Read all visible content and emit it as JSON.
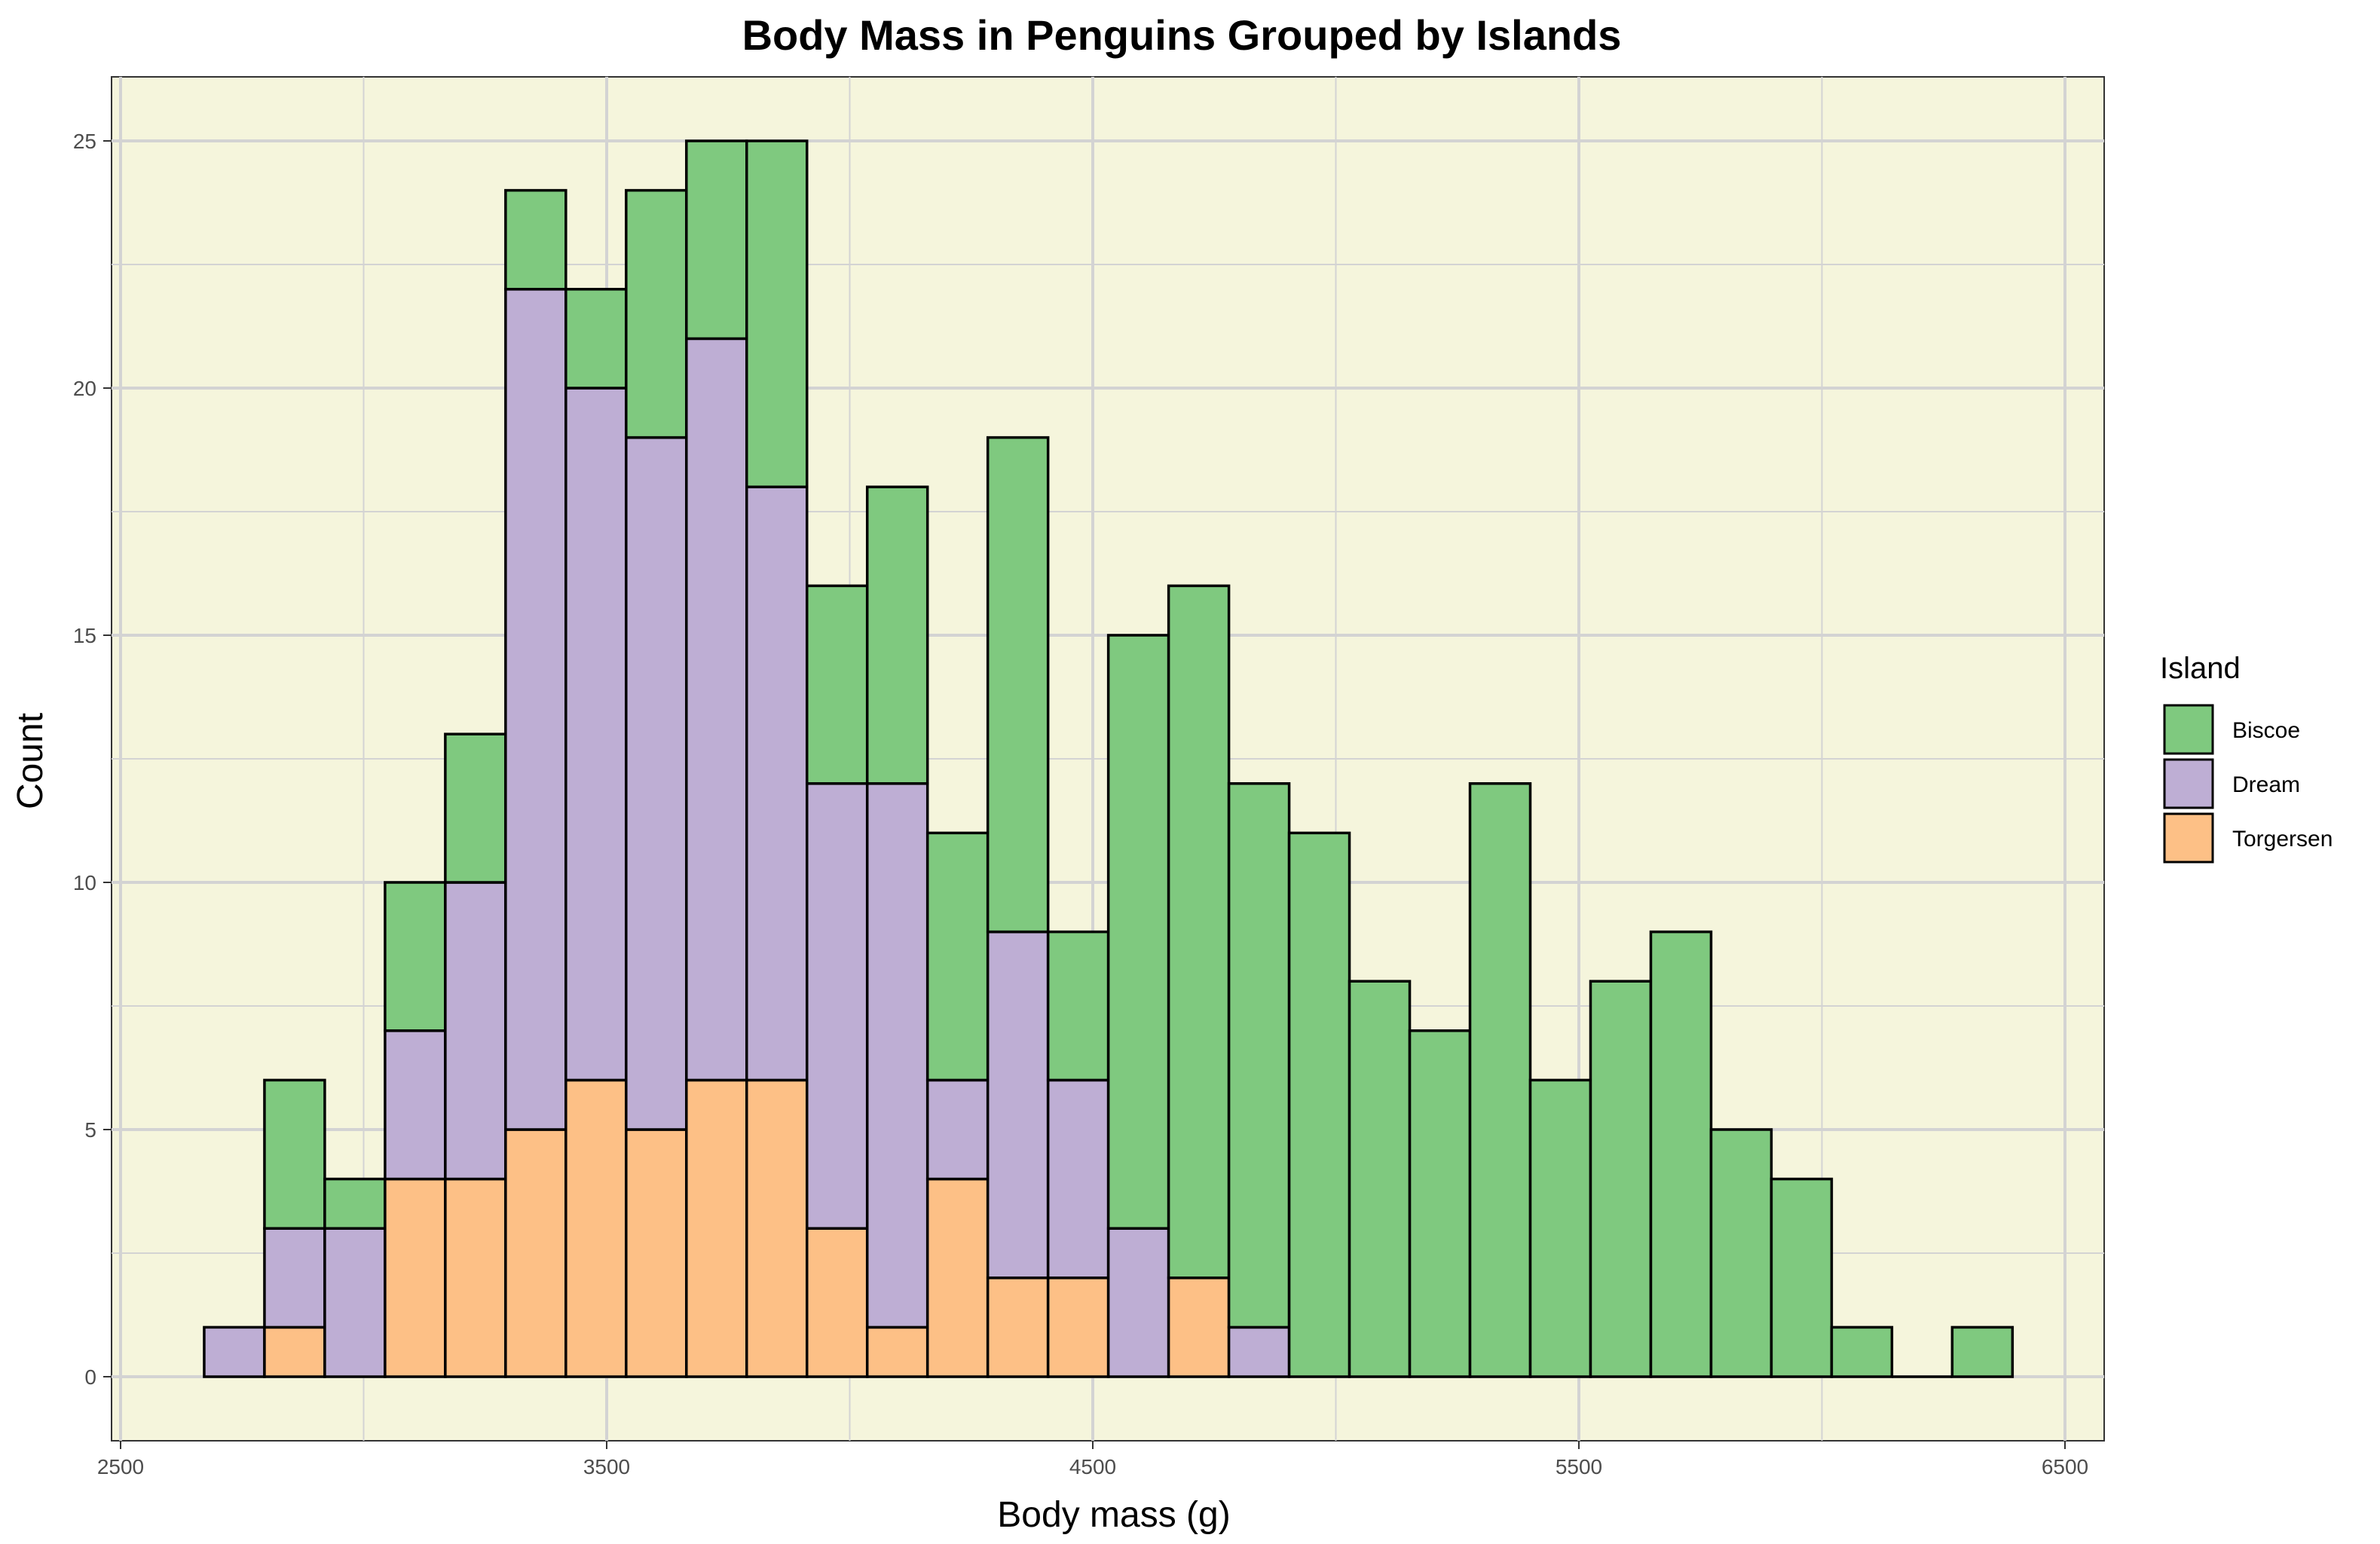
{
  "chart_data": {
    "type": "bar",
    "stacked": true,
    "title": "Body Mass in Penguins Grouped by Islands",
    "xlabel": "Body mass (g)",
    "ylabel": "Count",
    "xlim": [
      2500,
      6500
    ],
    "ylim": [
      0,
      25
    ],
    "x_ticks": [
      2500,
      3500,
      4500,
      5500,
      6500
    ],
    "y_ticks": [
      0,
      5,
      10,
      15,
      20,
      25
    ],
    "grid": true,
    "legend_position": "right",
    "legend_title": "Island",
    "bin_width": 124,
    "bins": [
      2734,
      2858,
      2982,
      3106,
      3230,
      3354,
      3478,
      3602,
      3726,
      3850,
      3974,
      4098,
      4222,
      4346,
      4470,
      4594,
      4718,
      4842,
      4966,
      5090,
      5214,
      5338,
      5462,
      5586,
      5710,
      5834,
      5958,
      6082,
      6206,
      6330
    ],
    "series": [
      {
        "name": "Torgersen",
        "color": "#FDC086",
        "values": [
          0,
          1,
          0,
          4,
          4,
          5,
          6,
          5,
          6,
          6,
          3,
          1,
          4,
          2,
          2,
          0,
          2,
          0,
          0,
          0,
          0,
          0,
          0,
          0,
          0,
          0,
          0,
          0,
          0,
          0
        ]
      },
      {
        "name": "Dream",
        "color": "#BEAED4",
        "values": [
          1,
          2,
          3,
          3,
          6,
          17,
          14,
          14,
          15,
          12,
          9,
          11,
          2,
          7,
          4,
          3,
          0,
          1,
          0,
          0,
          0,
          0,
          0,
          0,
          0,
          0,
          0,
          0,
          0,
          0
        ]
      },
      {
        "name": "Biscoe",
        "color": "#7FC97F",
        "values": [
          0,
          3,
          1,
          3,
          3,
          2,
          2,
          5,
          4,
          7,
          4,
          6,
          5,
          10,
          3,
          12,
          14,
          11,
          11,
          8,
          7,
          12,
          6,
          8,
          9,
          5,
          4,
          1,
          0,
          1
        ]
      }
    ],
    "legend_order": [
      "Biscoe",
      "Dream",
      "Torgersen"
    ]
  },
  "colors": {
    "panel_background": "#F5F5DC",
    "grid": "#D3D3D3",
    "bar_outline": "#000000"
  }
}
